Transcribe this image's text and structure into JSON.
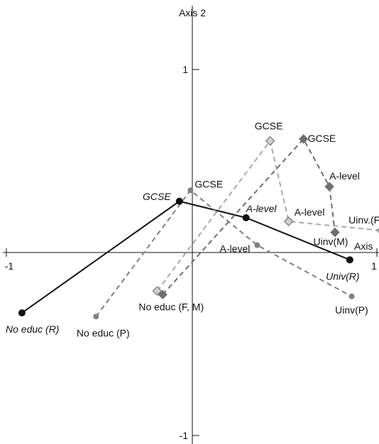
{
  "chart_data": {
    "type": "scatter",
    "title": "",
    "xlabel": "Axis",
    "ylabel": "Axis 2",
    "xlim": [
      -1,
      1
    ],
    "ylim": [
      -1,
      1.25
    ],
    "x_ticks": [
      {
        "value": -1,
        "label": "-1"
      },
      {
        "value": 1,
        "label": "1"
      }
    ],
    "y_ticks": [
      {
        "value": 1,
        "label": "1"
      },
      {
        "value": -1,
        "label": "-1"
      }
    ],
    "grid": false,
    "legend": "none",
    "colors": {
      "R": "#111111",
      "P": "#808080",
      "F": "#a8a8a8",
      "M": "#6e6e6e"
    },
    "series": [
      {
        "key": "R",
        "marker": "circle",
        "line": "solid",
        "points": [
          {
            "x": -0.92,
            "y": -0.33,
            "label": "No educ (R)"
          },
          {
            "x": -0.07,
            "y": 0.28,
            "label": "GCSE"
          },
          {
            "x": 0.29,
            "y": 0.19,
            "label": "A-level"
          },
          {
            "x": 0.85,
            "y": -0.04,
            "label": "Univ(R)"
          }
        ]
      },
      {
        "key": "P",
        "marker": "circle",
        "line": "dashed",
        "points": [
          {
            "x": -0.52,
            "y": -0.35,
            "label": "No educ (P)"
          },
          {
            "x": -0.01,
            "y": 0.34,
            "label": "GCSE"
          },
          {
            "x": 0.35,
            "y": 0.04,
            "label": "A-level"
          },
          {
            "x": 0.86,
            "y": -0.24,
            "label": "Uinv(P)"
          }
        ]
      },
      {
        "key": "F",
        "marker": "diamond",
        "line": "dashed",
        "points": [
          {
            "x": -0.19,
            "y": -0.21,
            "label": ""
          },
          {
            "x": 0.42,
            "y": 0.61,
            "label": "GCSE"
          },
          {
            "x": 0.52,
            "y": 0.17,
            "label": "A-level"
          },
          {
            "x": 1.02,
            "y": 0.12,
            "label": "Uinv.(F"
          }
        ]
      },
      {
        "key": "M",
        "marker": "diamond",
        "line": "dashed",
        "points": [
          {
            "x": -0.16,
            "y": -0.23,
            "label": "No educ (F, M)"
          },
          {
            "x": 0.6,
            "y": 0.62,
            "label": "GCSE"
          },
          {
            "x": 0.74,
            "y": 0.36,
            "label": "A-level"
          },
          {
            "x": 0.77,
            "y": 0.11,
            "label": "Uinv(M)"
          }
        ]
      }
    ]
  }
}
